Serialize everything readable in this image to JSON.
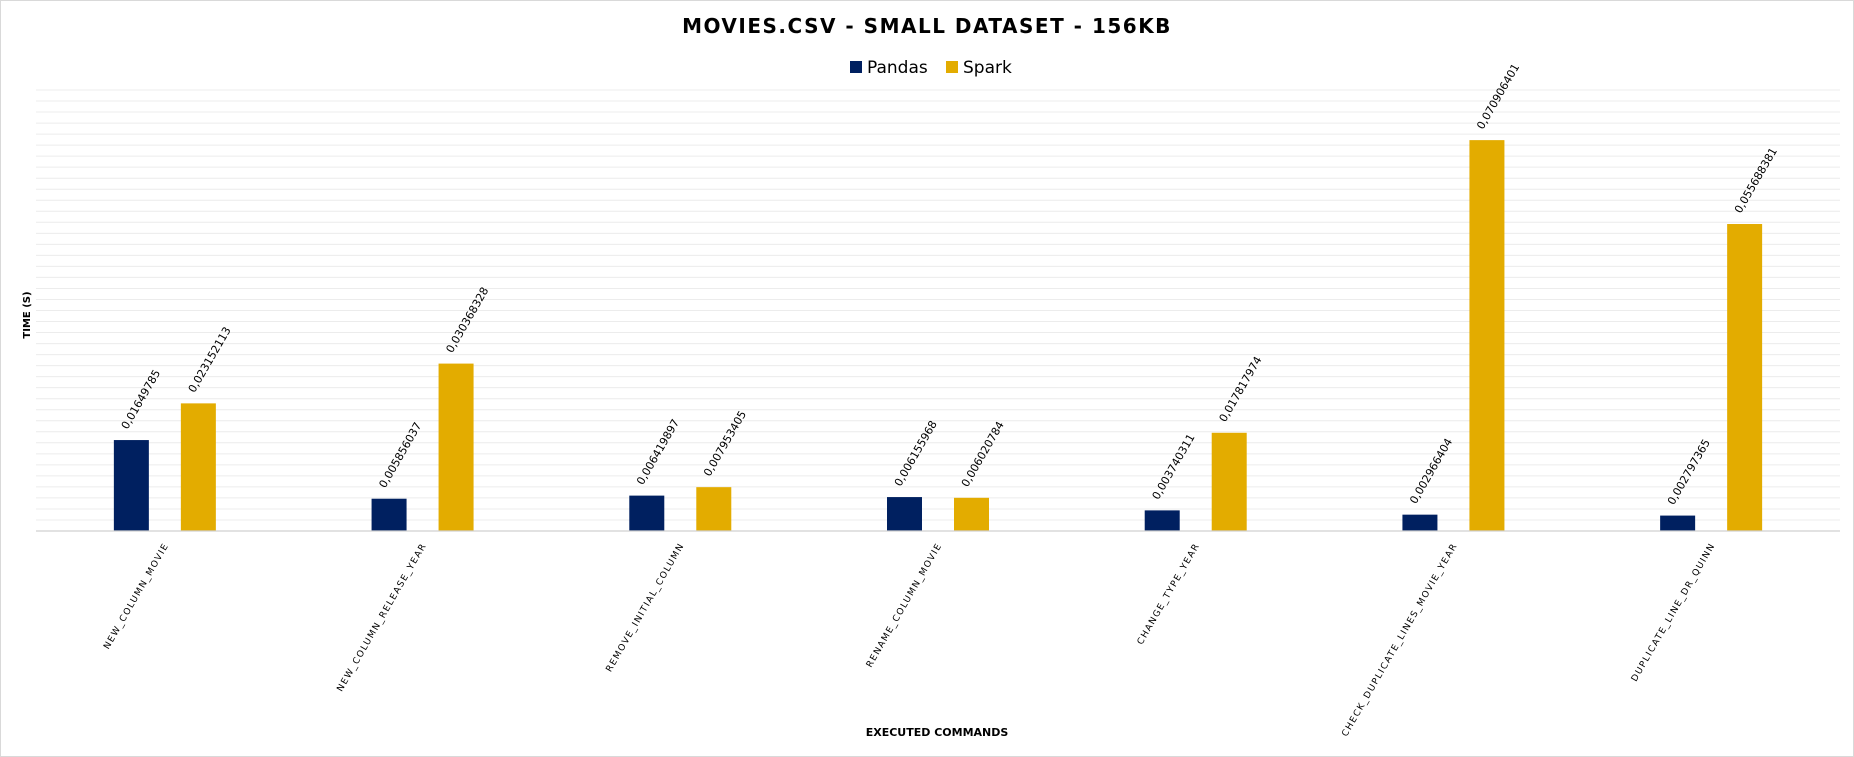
{
  "chart_data": {
    "type": "bar",
    "title": "MOVIES.CSV - SMALL DATASET - 156KB",
    "xlabel": "EXECUTED COMMANDS",
    "ylabel": "TIME (S)",
    "ylim": [
      0,
      0.08
    ],
    "grid": true,
    "legend_position": "top-center",
    "categories": [
      "NEW_COLUMN_MOVIE",
      "NEW_COLUMN_RELEASE_YEAR",
      "REMOVE_INITIAL_COLUMN",
      "RENAME_COLUMN_MOVIE",
      "CHANGE_TYPE_YEAR",
      "CHECK_DUPLICATE_LINES_MOVIE_YEAR",
      "DUPLICATE_LINE_DR_QUINN"
    ],
    "series": [
      {
        "name": "Pandas",
        "color": "#002060",
        "values": [
          0.01649785,
          0.005856037,
          0.006419897,
          0.006155968,
          0.003740311,
          0.002966404,
          0.002797365
        ],
        "labels": [
          "0,01649785",
          "0,005856037",
          "0,006419897",
          "0,006155968",
          "0,003740311",
          "0,002966404",
          "0,002797365"
        ]
      },
      {
        "name": "Spark",
        "color": "#E3AC00",
        "values": [
          0.023152113,
          0.030368328,
          0.007953405,
          0.006020784,
          0.017817974,
          0.070906401,
          0.055688381
        ],
        "labels": [
          "0,023152113",
          "0,030368328",
          "0,007953405",
          "0,006020784",
          "0,017817974",
          "0,070906401",
          "0,055688381"
        ]
      }
    ]
  }
}
